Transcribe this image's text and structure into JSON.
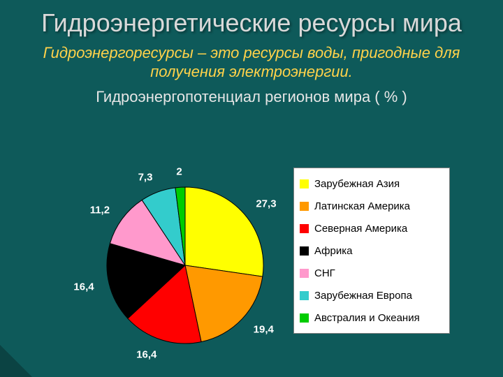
{
  "background_color": "#0e5a5a",
  "corner_triangle": {
    "size": 46,
    "color": "#0b4343"
  },
  "title": {
    "text": "Гидроэнергетические  ресурсы  мира",
    "fontsize": 36,
    "color": "#d9d9d9"
  },
  "subtitle": {
    "text": "Гидроэнергоресурсы – это  ресурсы  воды,  пригодные  для  получения  электроэнергии.",
    "fontsize": 22,
    "color": "#ffd24a"
  },
  "chart_title": {
    "text": "Гидроэнергопотенциал  регионов  мира  ( % )",
    "fontsize": 22,
    "color": "#e6e6e6"
  },
  "pie": {
    "type": "pie",
    "start_angle": -90,
    "diameter": 224,
    "stroke": "#000000",
    "stroke_width": 1,
    "label_fontsize": 15,
    "label_color": "#ffffff",
    "slices": [
      {
        "label": "Зарубежная Азия",
        "value": 27.3,
        "value_text": "27,3",
        "color": "#ffff00"
      },
      {
        "label": "Латинская Америка",
        "value": 19.4,
        "value_text": "19,4",
        "color": "#ff9900"
      },
      {
        "label": "Северная Америка",
        "value": 16.4,
        "value_text": "16,4",
        "color": "#ff0000"
      },
      {
        "label": "Африка",
        "value": 16.4,
        "value_text": "16,4",
        "color": "#000000"
      },
      {
        "label": "СНГ",
        "value": 11.2,
        "value_text": "11,2",
        "color": "#ff99cc"
      },
      {
        "label": "Зарубежная Европа",
        "value": 7.3,
        "value_text": "7,3",
        "color": "#33cccc"
      },
      {
        "label": "Австралия и Океания",
        "value": 2.0,
        "value_text": "2",
        "color": "#00cc00"
      }
    ]
  },
  "legend": {
    "fontsize": 15,
    "text_color": "#000000",
    "bg": "#ffffff",
    "border": "#808080"
  }
}
